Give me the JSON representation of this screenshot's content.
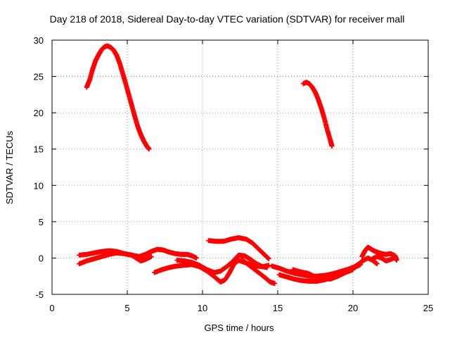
{
  "chart_data": {
    "type": "scatter",
    "title": "Day 218 of 2018, Sidereal Day-to-day VTEC variation (SDTVAR) for receiver mall",
    "xlabel": "GPS time / hours",
    "ylabel": "SDTVAR / TECUs",
    "xlim": [
      0,
      25
    ],
    "ylim": [
      -5,
      30
    ],
    "grid": true,
    "x_ticks": [
      0,
      5,
      10,
      15,
      20,
      25
    ],
    "y_ticks": [
      -5,
      0,
      5,
      10,
      15,
      20,
      25,
      30
    ],
    "marker": "plus",
    "series_color": "#ff0000",
    "series": [
      {
        "name": "arc-early-high",
        "points": [
          [
            2.3,
            23.5
          ],
          [
            2.5,
            24.5
          ],
          [
            2.7,
            26.0
          ],
          [
            2.9,
            27.2
          ],
          [
            3.1,
            28.0
          ],
          [
            3.3,
            28.7
          ],
          [
            3.5,
            29.1
          ],
          [
            3.7,
            29.2
          ],
          [
            3.9,
            29.0
          ],
          [
            4.1,
            28.6
          ],
          [
            4.3,
            27.9
          ],
          [
            4.5,
            26.8
          ],
          [
            4.7,
            25.4
          ],
          [
            4.9,
            24.0
          ],
          [
            5.1,
            22.5
          ],
          [
            5.3,
            21.0
          ],
          [
            5.5,
            19.5
          ],
          [
            5.7,
            18.1
          ],
          [
            5.9,
            17.0
          ],
          [
            6.1,
            16.1
          ],
          [
            6.3,
            15.4
          ],
          [
            6.45,
            15.0
          ]
        ]
      },
      {
        "name": "arc-late-high",
        "points": [
          [
            16.7,
            24.0
          ],
          [
            16.9,
            24.2
          ],
          [
            17.1,
            24.0
          ],
          [
            17.3,
            23.5
          ],
          [
            17.5,
            22.8
          ],
          [
            17.7,
            21.8
          ],
          [
            17.9,
            20.6
          ],
          [
            18.1,
            19.2
          ],
          [
            18.3,
            17.6
          ],
          [
            18.5,
            16.2
          ],
          [
            18.6,
            15.4
          ]
        ]
      },
      {
        "name": "low-1",
        "points": [
          [
            1.8,
            0.4
          ],
          [
            2.3,
            0.5
          ],
          [
            2.8,
            0.7
          ],
          [
            3.3,
            0.9
          ],
          [
            3.8,
            1.0
          ],
          [
            4.3,
            0.9
          ],
          [
            4.8,
            0.6
          ],
          [
            5.3,
            0.4
          ],
          [
            5.8,
            0.2
          ],
          [
            6.2,
            0.5
          ],
          [
            6.6,
            0.9
          ],
          [
            7.0,
            1.2
          ],
          [
            7.4,
            1.1
          ],
          [
            7.8,
            0.8
          ],
          [
            8.2,
            0.6
          ],
          [
            8.6,
            0.5
          ],
          [
            9.0,
            0.5
          ],
          [
            9.3,
            0.3
          ],
          [
            9.6,
            0.0
          ]
        ]
      },
      {
        "name": "low-2",
        "points": [
          [
            1.8,
            -0.8
          ],
          [
            2.3,
            -0.4
          ],
          [
            2.8,
            -0.1
          ],
          [
            3.3,
            0.2
          ],
          [
            3.8,
            0.5
          ],
          [
            4.3,
            0.7
          ],
          [
            4.8,
            0.6
          ],
          [
            5.3,
            0.4
          ],
          [
            5.6,
            0.0
          ],
          [
            5.9,
            -0.4
          ],
          [
            6.2,
            -0.2
          ],
          [
            6.6,
            0.2
          ]
        ]
      },
      {
        "name": "low-3",
        "points": [
          [
            6.8,
            -2.0
          ],
          [
            7.3,
            -1.6
          ],
          [
            7.8,
            -1.3
          ],
          [
            8.3,
            -1.1
          ],
          [
            8.8,
            -1.0
          ],
          [
            9.3,
            -0.9
          ],
          [
            9.8,
            -1.2
          ],
          [
            10.3,
            -1.8
          ],
          [
            10.8,
            -2.6
          ],
          [
            11.2,
            -3.3
          ],
          [
            11.5,
            -3.0
          ],
          [
            11.8,
            -2.0
          ],
          [
            12.1,
            -0.8
          ],
          [
            12.4,
            -0.3
          ],
          [
            12.8,
            -0.6
          ],
          [
            13.2,
            -0.9
          ],
          [
            13.6,
            -1.1
          ],
          [
            14.0,
            -1.2
          ],
          [
            14.3,
            -1.3
          ]
        ]
      },
      {
        "name": "low-4",
        "points": [
          [
            8.3,
            -0.3
          ],
          [
            8.8,
            -0.4
          ],
          [
            9.3,
            -0.6
          ],
          [
            9.8,
            -1.0
          ],
          [
            10.3,
            -1.6
          ],
          [
            10.8,
            -2.0
          ],
          [
            11.2,
            -1.8
          ],
          [
            11.6,
            -1.2
          ],
          [
            12.0,
            -0.5
          ],
          [
            12.4,
            0.4
          ],
          [
            12.8,
            0.3
          ],
          [
            13.2,
            -0.2
          ],
          [
            13.6,
            -0.8
          ],
          [
            14.0,
            -1.2
          ],
          [
            14.4,
            -1.0
          ]
        ]
      },
      {
        "name": "low-5",
        "points": [
          [
            10.4,
            2.4
          ],
          [
            10.9,
            2.3
          ],
          [
            11.4,
            2.3
          ],
          [
            11.9,
            2.6
          ],
          [
            12.4,
            2.8
          ],
          [
            12.9,
            2.6
          ],
          [
            13.3,
            2.1
          ],
          [
            13.7,
            1.3
          ],
          [
            14.1,
            0.5
          ],
          [
            14.4,
            -0.1
          ]
        ]
      },
      {
        "name": "low-6",
        "points": [
          [
            12.6,
            -0.2
          ],
          [
            13.1,
            -1.0
          ],
          [
            13.6,
            -1.8
          ],
          [
            14.1,
            -2.6
          ],
          [
            14.5,
            -3.3
          ],
          [
            14.8,
            -3.5
          ]
        ]
      },
      {
        "name": "low-7",
        "points": [
          [
            14.6,
            -1.1
          ],
          [
            15.1,
            -1.4
          ],
          [
            15.6,
            -1.8
          ],
          [
            16.1,
            -2.1
          ],
          [
            16.6,
            -2.3
          ],
          [
            17.1,
            -2.5
          ],
          [
            17.6,
            -2.5
          ],
          [
            18.1,
            -2.4
          ],
          [
            18.6,
            -2.2
          ],
          [
            19.1,
            -1.9
          ],
          [
            19.6,
            -1.6
          ],
          [
            20.1,
            -1.2
          ],
          [
            20.4,
            -0.8
          ],
          [
            20.7,
            -0.3
          ],
          [
            21.0,
            0.0
          ],
          [
            21.3,
            -0.3
          ],
          [
            21.6,
            -0.8
          ]
        ]
      },
      {
        "name": "low-8",
        "points": [
          [
            15.1,
            -2.3
          ],
          [
            15.6,
            -2.6
          ],
          [
            16.1,
            -2.9
          ],
          [
            16.6,
            -3.1
          ],
          [
            17.1,
            -3.2
          ],
          [
            17.6,
            -3.2
          ],
          [
            18.1,
            -3.0
          ],
          [
            18.6,
            -2.7
          ],
          [
            19.1,
            -2.3
          ],
          [
            19.6,
            -1.8
          ],
          [
            20.1,
            -1.3
          ],
          [
            20.5,
            -0.9
          ]
        ]
      },
      {
        "name": "low-9",
        "points": [
          [
            20.6,
            0.2
          ],
          [
            20.8,
            1.0
          ],
          [
            21.0,
            1.5
          ],
          [
            21.3,
            1.1
          ],
          [
            21.6,
            0.8
          ],
          [
            21.9,
            0.6
          ],
          [
            22.2,
            0.5
          ],
          [
            22.5,
            0.6
          ],
          [
            22.8,
            0.3
          ],
          [
            22.9,
            -0.2
          ]
        ]
      },
      {
        "name": "low-10",
        "points": [
          [
            21.3,
            -0.1
          ],
          [
            21.6,
            0.2
          ],
          [
            21.9,
            0.0
          ],
          [
            22.2,
            -0.4
          ],
          [
            22.5,
            -0.2
          ],
          [
            22.8,
            0.1
          ],
          [
            22.9,
            -0.3
          ]
        ]
      },
      {
        "name": "low-11",
        "points": [
          [
            16.0,
            -1.6
          ],
          [
            16.5,
            -1.9
          ],
          [
            17.0,
            -2.1
          ],
          [
            17.5,
            -2.6
          ],
          [
            18.0,
            -2.8
          ],
          [
            18.5,
            -2.9
          ],
          [
            19.0,
            -2.5
          ],
          [
            19.5,
            -2.0
          ],
          [
            20.0,
            -1.6
          ]
        ]
      }
    ]
  }
}
